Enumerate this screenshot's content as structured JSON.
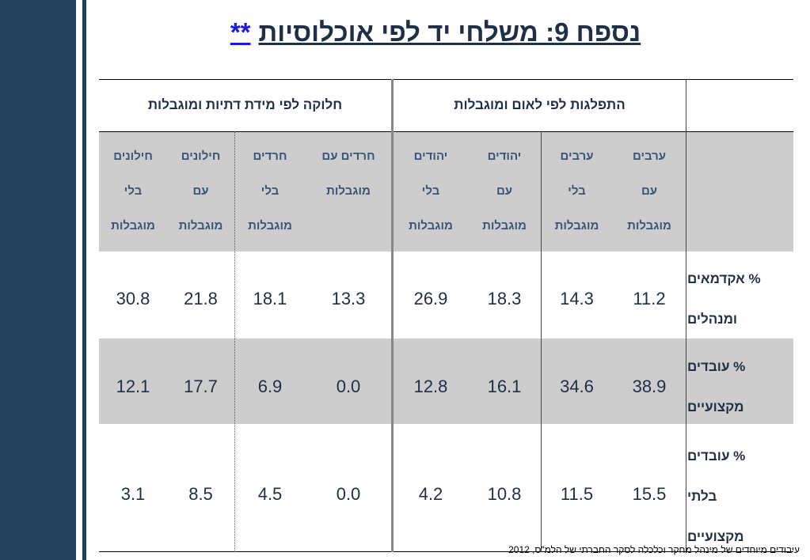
{
  "title": {
    "text": "נספח 9: משלחי יד לפי אוכלוסיות",
    "stars": "**"
  },
  "groups": {
    "nation": "התפלגות לפי לאום ומוגבלות",
    "religion": "חלוקה לפי מידת דתיות ומוגבלות"
  },
  "columns": [
    {
      "line1": "ערבים",
      "line2": "עם",
      "line3": "מוגבלות"
    },
    {
      "line1": "ערבים",
      "line2": "בלי",
      "line3": "מוגבלות"
    },
    {
      "line1": "יהודים",
      "line2": "עם",
      "line3": "מוגבלות"
    },
    {
      "line1": "יהודים",
      "line2": "בלי",
      "line3": "מוגבלות"
    },
    {
      "line1": "חרדים עם",
      "line2": "מוגבלות",
      "line3": ""
    },
    {
      "line1": "חרדים",
      "line2": "בלי",
      "line3": "מוגבלות"
    },
    {
      "line1": "חילונים",
      "line2": "עם",
      "line3": "מוגבלות"
    },
    {
      "line1": "חילונים",
      "line2": "בלי",
      "line3": "מוגבלות"
    }
  ],
  "rows": [
    {
      "label1": "% אקדמאים",
      "label2": "ומנהלים",
      "label3": "",
      "values": [
        "11.2",
        "14.3",
        "18.3",
        "26.9",
        "13.3",
        "18.1",
        "21.8",
        "30.8"
      ]
    },
    {
      "label1": "% עובדים",
      "label2": "מקצועיים",
      "label3": "",
      "values": [
        "38.9",
        "34.6",
        "16.1",
        "12.8",
        "0.0",
        "6.9",
        "17.7",
        "12.1"
      ]
    },
    {
      "label1": "% עובדים",
      "label2": "בלתי",
      "label3": "מקצועיים",
      "values": [
        "15.5",
        "11.5",
        "10.8",
        "4.2",
        "0.0",
        "4.5",
        "8.5",
        "3.1"
      ]
    }
  ],
  "footer": "עיבודים מיוחדים של מינהל מחקר וכלכלה  לסקר החברתי של הלמ\"ס,  2012"
}
